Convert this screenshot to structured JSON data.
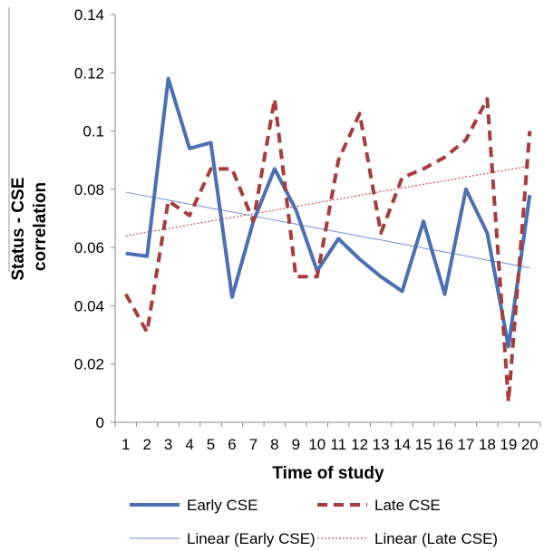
{
  "chart_data": {
    "type": "line",
    "title": "",
    "xlabel": "Time of study",
    "ylabel_lines": [
      "Status - CSE",
      "correlation"
    ],
    "x": [
      1,
      2,
      3,
      4,
      5,
      6,
      7,
      8,
      9,
      10,
      11,
      12,
      13,
      14,
      15,
      16,
      17,
      18,
      19,
      20
    ],
    "xtick_labels": [
      "1",
      "2",
      "3",
      "4",
      "5",
      "6",
      "7",
      "8",
      "9",
      "10",
      "11",
      "12",
      "13",
      "14",
      "15",
      "16",
      "17",
      "18",
      "19",
      "20"
    ],
    "ylim": [
      0,
      0.14
    ],
    "yticks": [
      0,
      0.02,
      0.04,
      0.06,
      0.08,
      0.1,
      0.12,
      0.14
    ],
    "ytick_labels": [
      "0",
      "0.02",
      "0.04",
      "0.06",
      "0.08",
      "0.1",
      "0.12",
      "0.14"
    ],
    "grid": false,
    "legend_position": "bottom",
    "series": [
      {
        "name": "Early CSE",
        "style": "solid-thick",
        "color": "#4a6fb5",
        "values": [
          0.058,
          0.057,
          0.118,
          0.094,
          0.096,
          0.043,
          0.069,
          0.087,
          0.073,
          0.052,
          0.063,
          0.056,
          0.05,
          0.045,
          0.069,
          0.044,
          0.08,
          0.065,
          0.026,
          0.078
        ]
      },
      {
        "name": "Late CSE",
        "style": "dashed-thick",
        "color": "#a83c3c",
        "values": [
          0.044,
          0.031,
          0.076,
          0.071,
          0.087,
          0.087,
          0.069,
          0.111,
          0.05,
          0.05,
          0.09,
          0.106,
          0.065,
          0.084,
          0.087,
          0.091,
          0.097,
          0.111,
          0.007,
          0.1
        ]
      },
      {
        "name": "Linear (Early CSE)",
        "style": "solid-thin",
        "color": "#6f8fd6",
        "values": [
          0.079,
          0.0776,
          0.0763,
          0.0749,
          0.0735,
          0.0722,
          0.0708,
          0.0694,
          0.0681,
          0.0667,
          0.0653,
          0.0639,
          0.0626,
          0.0612,
          0.0598,
          0.0585,
          0.0571,
          0.0557,
          0.0544,
          0.053
        ]
      },
      {
        "name": "Linear (Late CSE)",
        "style": "dotted-thin",
        "color": "#c0504d",
        "values": [
          0.064,
          0.0653,
          0.0665,
          0.0678,
          0.0691,
          0.0703,
          0.0716,
          0.0728,
          0.0741,
          0.0754,
          0.0766,
          0.0779,
          0.0792,
          0.0804,
          0.0817,
          0.0829,
          0.0842,
          0.0855,
          0.0867,
          0.088
        ]
      }
    ]
  }
}
